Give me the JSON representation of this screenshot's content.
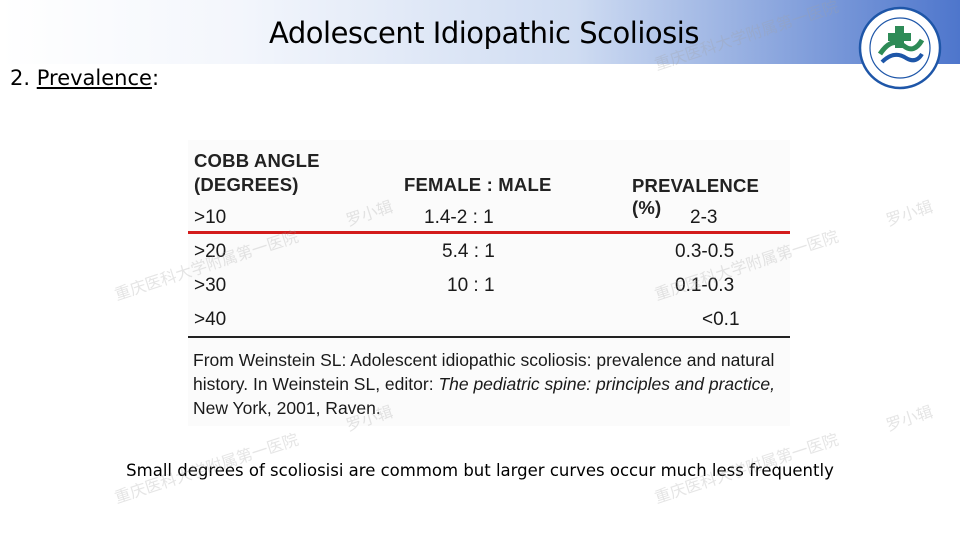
{
  "slide": {
    "title": "Adolescent Idiopathic Scoliosis",
    "section_number": "2.",
    "section_label": "Prevalence",
    "section_suffix": ":"
  },
  "table": {
    "headers": {
      "cobb_line1": "COBB ANGLE",
      "cobb_line2": "(DEGREES)",
      "ratio": "FEMALE : MALE",
      "prevalence": "PREVALENCE (%)"
    },
    "rows": [
      {
        "angle": ">10",
        "ratio": "1.4-2 : 1",
        "prevalence": "2-3"
      },
      {
        "angle": ">20",
        "ratio": "5.4 : 1",
        "prevalence": "0.3-0.5"
      },
      {
        "angle": ">30",
        "ratio": "10 : 1",
        "prevalence": "0.1-0.3"
      },
      {
        "angle": ">40",
        "ratio": "",
        "prevalence": "<0.1"
      }
    ],
    "source": {
      "part1": "From Weinstein SL: Adolescent idiopathic scoliosis: prevalence and natural history. In Weinstein SL, editor: ",
      "book": "The pediatric spine: principles and practice,",
      "part2": " New York, 2001, Raven."
    },
    "highlight_color": "#d31b1b"
  },
  "note": "Small degrees of scoliosisi are commom but larger curves occur  much less frequently",
  "watermark": {
    "institution": "重庆医科大学附属第一医院",
    "author": "罗小辑"
  },
  "colors": {
    "header_band_end": "#4e76cc",
    "logo_green": "#2e8b57",
    "logo_blue": "#1e56a8"
  }
}
